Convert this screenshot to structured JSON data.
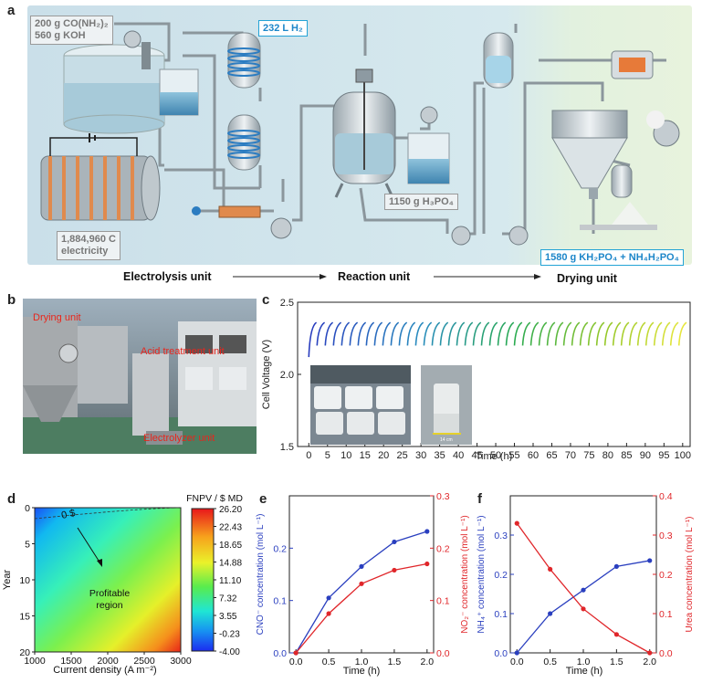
{
  "panel_a": {
    "label": "a",
    "inputs_box": [
      "200 g CO(NH₂)₂",
      "560 g KOH"
    ],
    "h2_box": "232 L H₂",
    "electricity_box": [
      "1,884,960 C",
      "electricity"
    ],
    "h3po4_box": "1150 g  H₃PO₄",
    "product_box": "1580 g KH₂PO₄ + NH₄H₂PO₄",
    "units": [
      "Electrolysis unit",
      "Reaction unit",
      "Drying unit"
    ],
    "colors": {
      "bg_left": "#cfe3ec",
      "bg_right": "#e4f1dc",
      "accent": "#23a3d6"
    }
  },
  "panel_b": {
    "label": "b",
    "photo_labels": [
      "Drying unit",
      "Acid treatment unit",
      "Electrolyzer unit"
    ]
  },
  "chart_data": [
    {
      "id": "c",
      "type": "line",
      "xlabel": "Time (h)",
      "ylabel": "Cell Voltage (V)",
      "xlim": [
        -3,
        102
      ],
      "ylim": [
        1.5,
        2.5
      ],
      "xticks": [
        0,
        5,
        10,
        15,
        20,
        25,
        30,
        35,
        40,
        45,
        50,
        55,
        60,
        65,
        70,
        75,
        80,
        85,
        90,
        95,
        100
      ],
      "yticks": [
        "1.5",
        "2.0",
        "2.5"
      ],
      "cycles": {
        "count": 46,
        "start_h": 0,
        "period_h": 2.2,
        "v_min": 2.2,
        "v_max": 2.36
      },
      "inset_photo_label": "14 cm"
    },
    {
      "id": "d",
      "type": "heatmap",
      "title": "FNPV / $ MD",
      "xlabel": "Current density (A m⁻²)",
      "ylabel": "Year",
      "xlim": [
        1000,
        3000
      ],
      "ylim": [
        0,
        20
      ],
      "xticks": [
        "1000",
        "1500",
        "2000",
        "2500",
        "3000"
      ],
      "yticks": [
        "0",
        "5",
        "10",
        "15",
        "20"
      ],
      "colorbar_ticks": [
        "26.20",
        "22.43",
        "18.65",
        "14.88",
        "11.10",
        "7.32",
        "3.55",
        "-0.23",
        "-4.00"
      ],
      "contour_label": "0 $",
      "annotation": [
        "Profitable",
        "region"
      ]
    },
    {
      "id": "e",
      "type": "line",
      "xlabel": "Time (h)",
      "ylabel_left": "CNO⁻ concentration (mol L⁻¹)",
      "ylabel_right": "NO₂⁻ concentration (mol L⁻¹)",
      "x": [
        0.0,
        0.5,
        1.0,
        1.5,
        2.0
      ],
      "xticks": [
        "0.0",
        "0.5",
        "1.0",
        "1.5",
        "2.0"
      ],
      "yticks_left": [
        "0.0",
        "0.1",
        "0.2"
      ],
      "yticks_right": [
        "0.0",
        "0.1",
        "0.2",
        "0.3"
      ],
      "ylim_left": [
        0,
        0.3
      ],
      "ylim_right": [
        0,
        0.3
      ],
      "series": [
        {
          "axis": "left",
          "color": "#2a3fbf",
          "values": [
            0.0,
            0.105,
            0.165,
            0.212,
            0.232
          ]
        },
        {
          "axis": "right",
          "color": "#e0262a",
          "values": [
            0.0,
            0.075,
            0.132,
            0.158,
            0.17
          ]
        }
      ]
    },
    {
      "id": "f",
      "type": "line",
      "xlabel": "Time (h)",
      "ylabel_left": "NH₄⁺ concentration (mol L⁻¹)",
      "ylabel_right": "Urea concentration (mol L⁻¹)",
      "x": [
        0.0,
        0.5,
        1.0,
        1.5,
        2.0
      ],
      "xticks": [
        "0.0",
        "0.5",
        "1.0",
        "1.5",
        "2.0"
      ],
      "yticks_left": [
        "0.0",
        "0.1",
        "0.2",
        "0.3"
      ],
      "yticks_right": [
        "0.0",
        "0.1",
        "0.2",
        "0.3",
        "0.4"
      ],
      "ylim_left": [
        0,
        0.4
      ],
      "ylim_right": [
        0,
        0.4
      ],
      "series": [
        {
          "axis": "left",
          "color": "#2a3fbf",
          "values": [
            0.0,
            0.1,
            0.16,
            0.22,
            0.235
          ]
        },
        {
          "axis": "right",
          "color": "#e0262a",
          "values": [
            0.33,
            0.213,
            0.112,
            0.047,
            0.0
          ]
        }
      ]
    }
  ]
}
